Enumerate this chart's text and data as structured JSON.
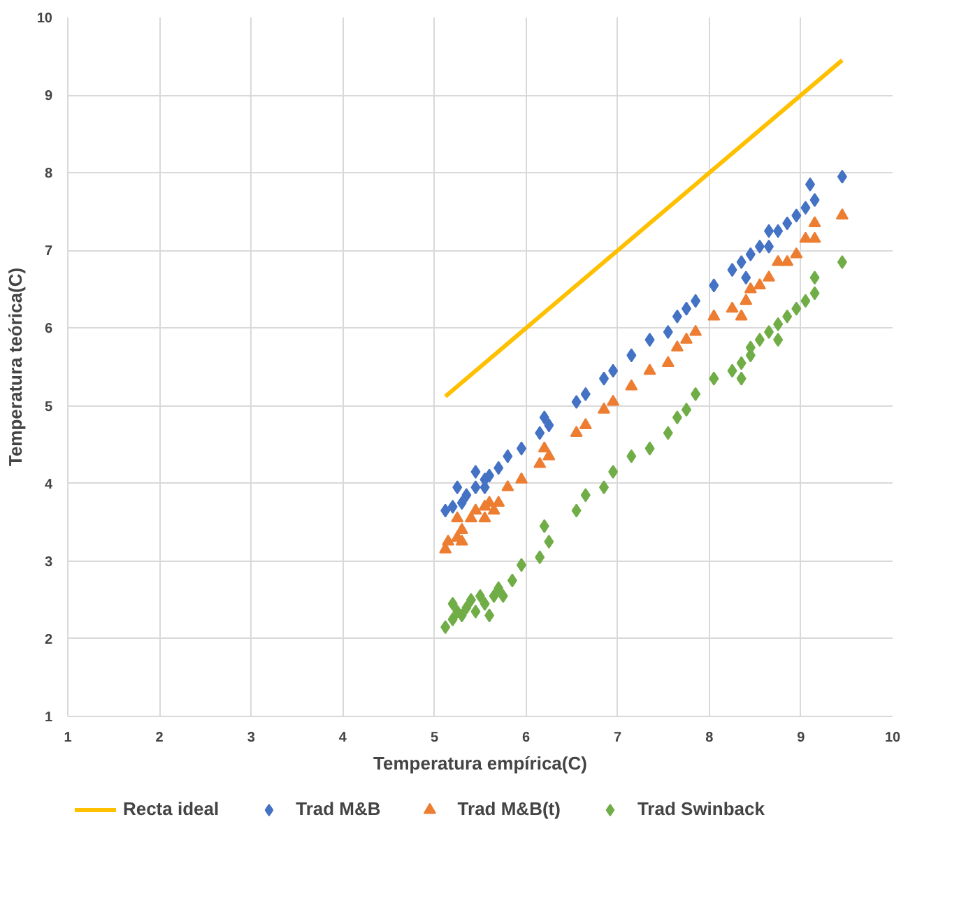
{
  "chart_data": {
    "type": "scatter",
    "xlabel": "Temperatura empírica(C)",
    "ylabel": "Temperatura teórica(C)",
    "xlim": [
      1,
      10
    ],
    "ylim": [
      1,
      10
    ],
    "xticks": [
      1,
      2,
      3,
      4,
      5,
      6,
      7,
      8,
      9,
      10
    ],
    "yticks": [
      1,
      2,
      3,
      4,
      5,
      6,
      7,
      8,
      9,
      10
    ],
    "grid": true,
    "legend": "bottom",
    "series": [
      {
        "name": "Recta ideal",
        "type": "line",
        "color": "#ffc000",
        "marker": "none",
        "line_style": "solid",
        "x": [
          5.12,
          9.45
        ],
        "values": [
          5.12,
          9.45
        ]
      },
      {
        "name": "Trad M&B",
        "color": "#4472c4",
        "marker": "diamond",
        "x": [
          5.12,
          5.2,
          5.25,
          5.3,
          5.35,
          5.45,
          5.45,
          5.55,
          5.55,
          5.6,
          5.7,
          5.8,
          5.95,
          6.15,
          6.2,
          6.25,
          6.55,
          6.65,
          6.85,
          6.95,
          7.15,
          7.35,
          7.55,
          7.65,
          7.75,
          7.85,
          8.05,
          8.25,
          8.35,
          8.4,
          8.45,
          8.55,
          8.65,
          8.75,
          8.65,
          8.85,
          8.95,
          9.05,
          9.15,
          9.1,
          9.45
        ],
        "values": [
          3.65,
          3.7,
          3.95,
          3.75,
          3.85,
          4.15,
          3.95,
          4.05,
          3.95,
          4.1,
          4.2,
          4.35,
          4.45,
          4.65,
          4.85,
          4.75,
          5.05,
          5.15,
          5.35,
          5.45,
          5.65,
          5.85,
          5.95,
          6.15,
          6.25,
          6.35,
          6.55,
          6.75,
          6.85,
          6.65,
          6.95,
          7.05,
          7.25,
          7.25,
          7.05,
          7.35,
          7.45,
          7.55,
          7.65,
          7.85,
          7.95
        ]
      },
      {
        "name": "Trad M&B(t)",
        "color": "#ed7d31",
        "marker": "triangle",
        "x": [
          5.12,
          5.15,
          5.25,
          5.3,
          5.3,
          5.25,
          5.4,
          5.45,
          5.55,
          5.55,
          5.6,
          5.65,
          5.7,
          5.8,
          5.95,
          6.15,
          6.2,
          6.25,
          6.55,
          6.65,
          6.85,
          6.95,
          7.15,
          7.35,
          7.55,
          7.65,
          7.75,
          7.85,
          8.05,
          8.25,
          8.35,
          8.4,
          8.45,
          8.55,
          8.65,
          8.75,
          8.85,
          8.95,
          9.05,
          9.15,
          9.15,
          9.45
        ],
        "values": [
          3.15,
          3.25,
          3.3,
          3.25,
          3.4,
          3.55,
          3.55,
          3.65,
          3.55,
          3.7,
          3.75,
          3.65,
          3.75,
          3.95,
          4.05,
          4.25,
          4.45,
          4.35,
          4.65,
          4.75,
          4.95,
          5.05,
          5.25,
          5.45,
          5.55,
          5.75,
          5.85,
          5.95,
          6.15,
          6.25,
          6.15,
          6.35,
          6.5,
          6.55,
          6.65,
          6.85,
          6.85,
          6.95,
          7.15,
          7.15,
          7.35,
          7.45
        ]
      },
      {
        "name": "Trad Swinback",
        "color": "#70ad47",
        "marker": "diamond",
        "x": [
          5.12,
          5.2,
          5.2,
          5.25,
          5.3,
          5.35,
          5.4,
          5.45,
          5.5,
          5.55,
          5.6,
          5.65,
          5.7,
          5.75,
          5.85,
          5.95,
          6.15,
          6.2,
          6.25,
          6.55,
          6.65,
          6.85,
          6.95,
          7.15,
          7.35,
          7.55,
          7.65,
          7.75,
          7.85,
          8.05,
          8.25,
          8.35,
          8.35,
          8.45,
          8.45,
          8.55,
          8.65,
          8.75,
          8.75,
          8.85,
          8.95,
          9.05,
          9.15,
          9.15,
          9.45
        ],
        "values": [
          2.15,
          2.25,
          2.45,
          2.35,
          2.3,
          2.4,
          2.5,
          2.35,
          2.55,
          2.45,
          2.3,
          2.55,
          2.65,
          2.55,
          2.75,
          2.95,
          3.05,
          3.45,
          3.25,
          3.65,
          3.85,
          3.95,
          4.15,
          4.35,
          4.45,
          4.65,
          4.85,
          4.95,
          5.15,
          5.35,
          5.45,
          5.35,
          5.55,
          5.65,
          5.75,
          5.85,
          5.95,
          5.85,
          6.05,
          6.15,
          6.25,
          6.35,
          6.45,
          6.65,
          6.85
        ]
      }
    ]
  }
}
